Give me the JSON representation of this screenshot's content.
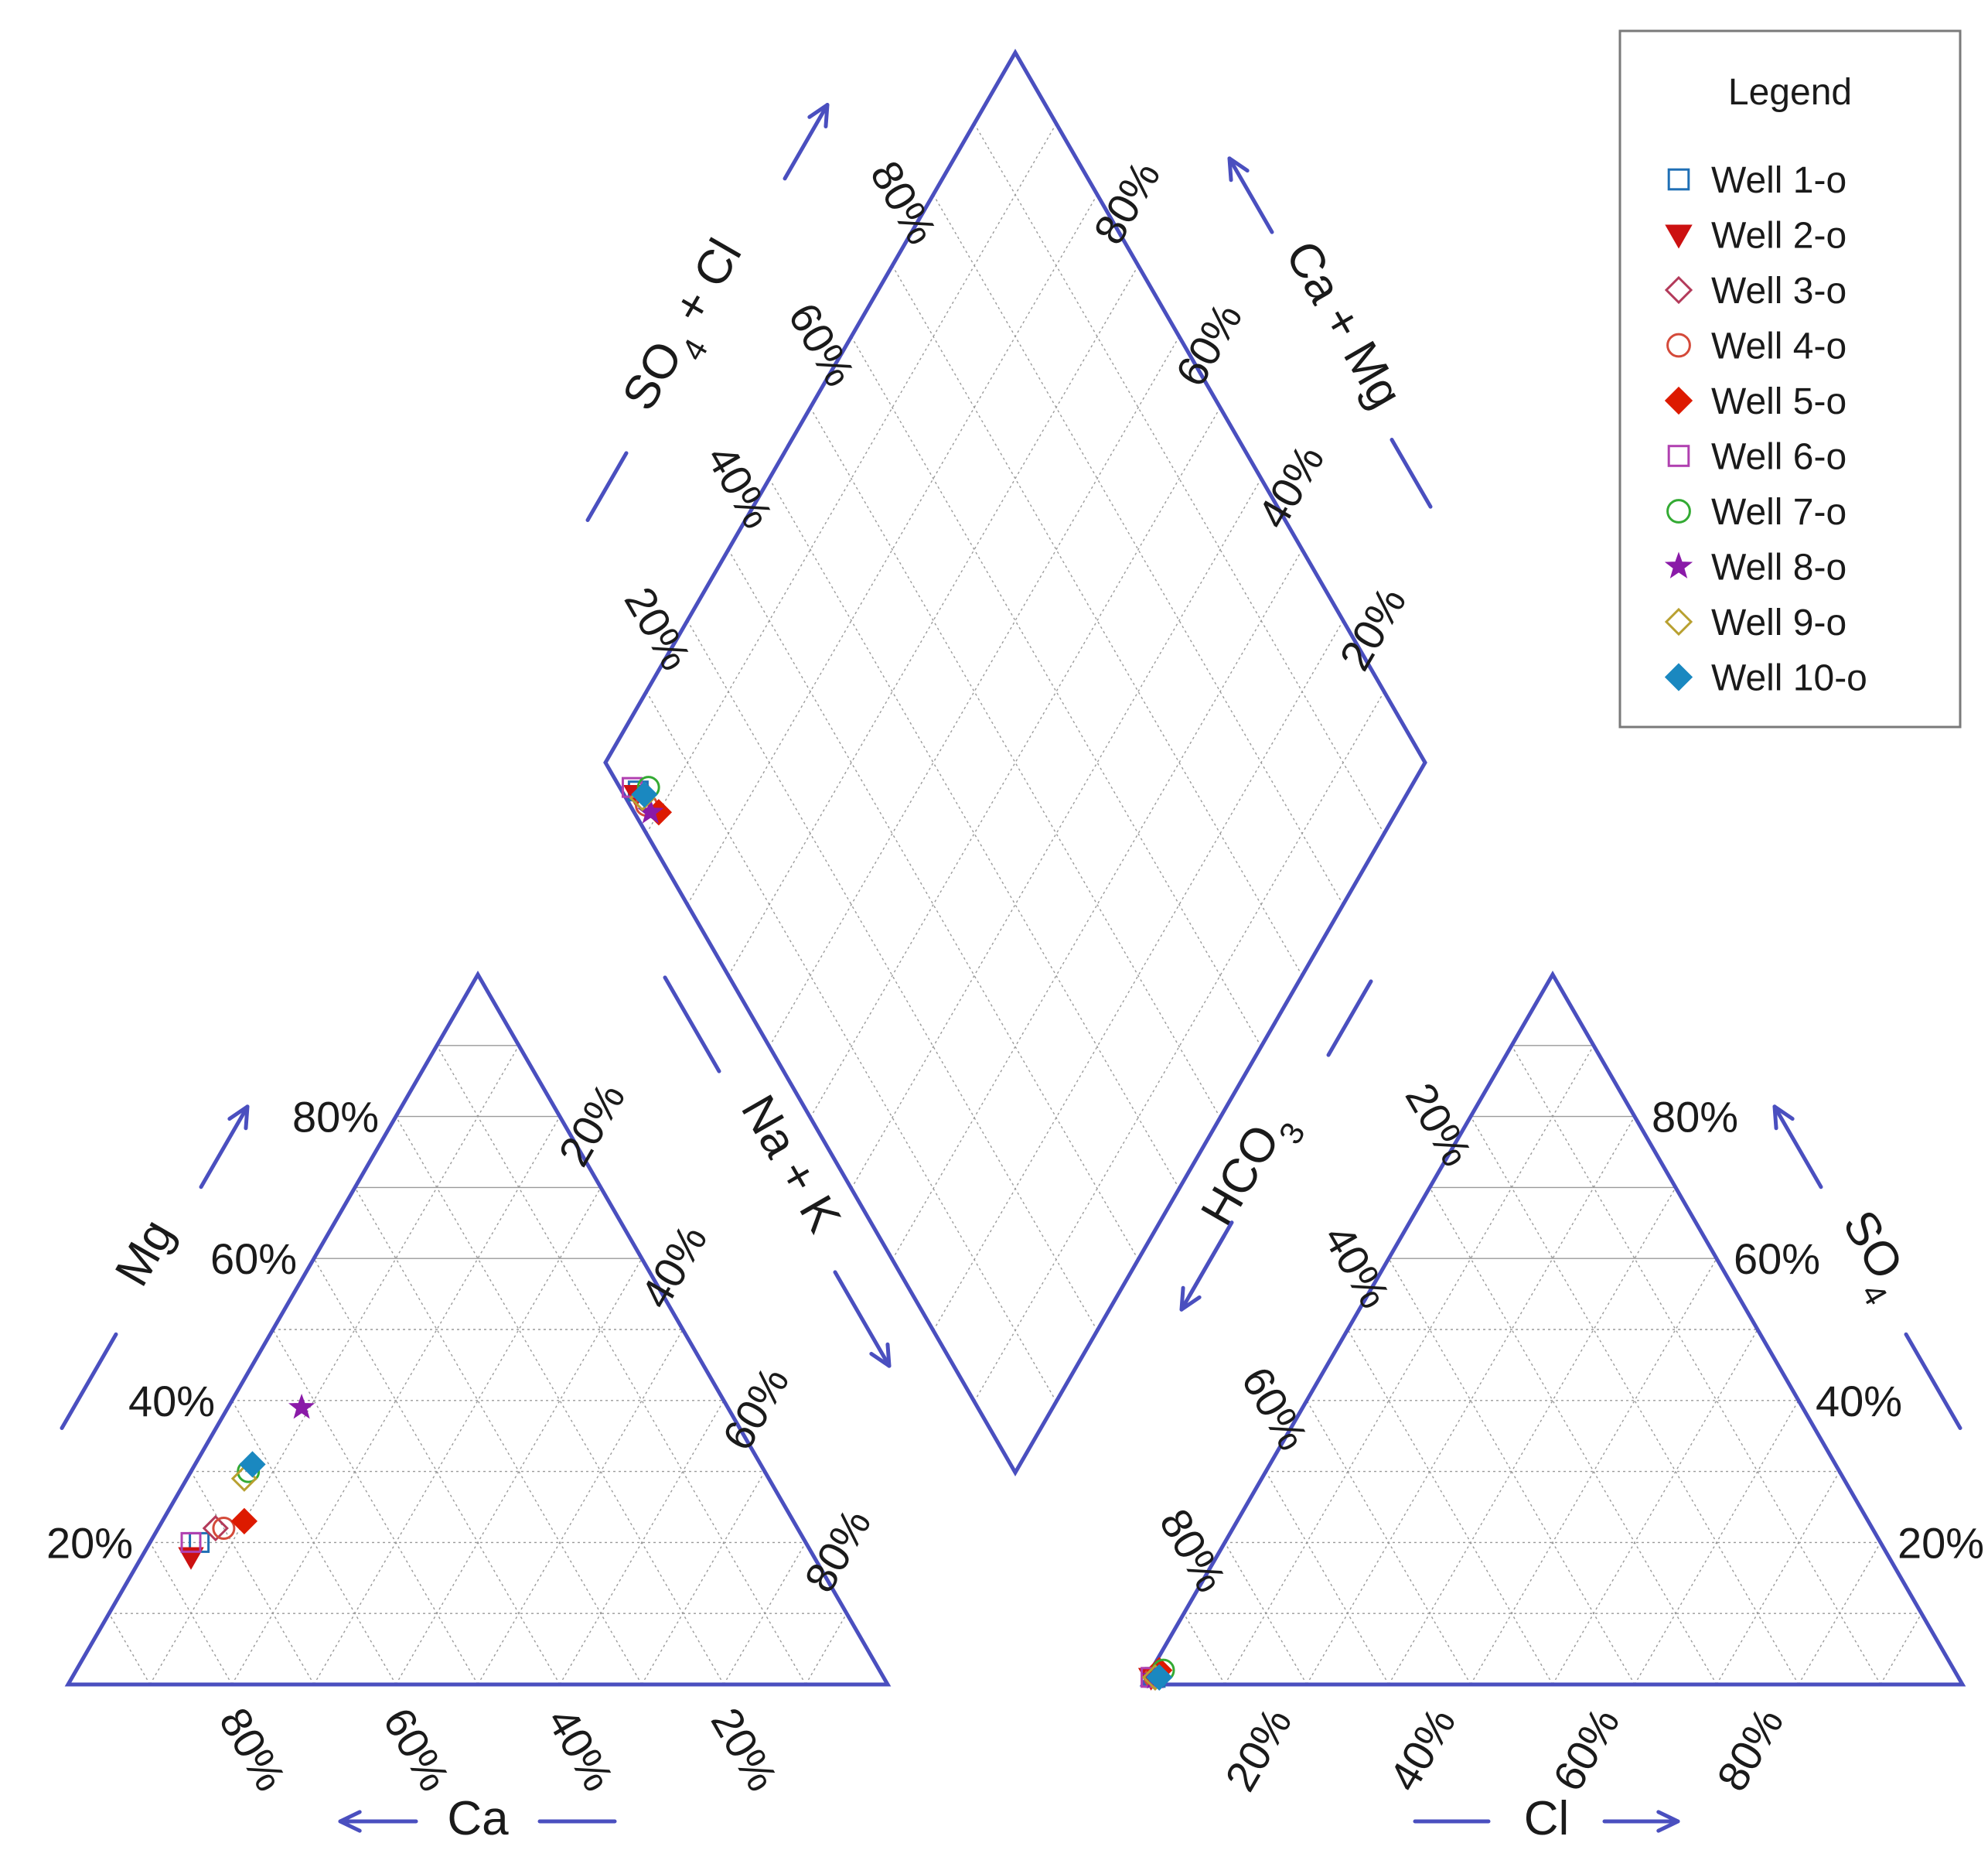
{
  "chart_data": {
    "type": "piper",
    "legend": {
      "title": "Legend",
      "placement": "top-right",
      "items": [
        {
          "label": "Well 1-o",
          "marker": "square-open",
          "color": "#1f6fb5"
        },
        {
          "label": "Well 2-o",
          "marker": "triangle-down-filled",
          "color": "#cc1111"
        },
        {
          "label": "Well 3-o",
          "marker": "diamond-open",
          "color": "#b33a5a"
        },
        {
          "label": "Well 4-o",
          "marker": "circle-open",
          "color": "#d44a3a"
        },
        {
          "label": "Well 5-o",
          "marker": "diamond-filled",
          "color": "#dd1a00"
        },
        {
          "label": "Well 6-o",
          "marker": "square-open",
          "color": "#b040b0"
        },
        {
          "label": "Well 7-o",
          "marker": "circle-open",
          "color": "#33aa33"
        },
        {
          "label": "Well 8-o",
          "marker": "star-filled",
          "color": "#8a1aa8"
        },
        {
          "label": "Well 9-o",
          "marker": "diamond-open",
          "color": "#b8a030"
        },
        {
          "label": "Well 10-o",
          "marker": "diamond-filled",
          "color": "#1a88c0"
        }
      ]
    },
    "tick_labels": [
      "20%",
      "40%",
      "60%",
      "80%"
    ],
    "axes": {
      "cation_mg": "Mg",
      "cation_ca": "Ca",
      "cation_nak": "Na + K",
      "anion_so4_sym": "SO",
      "anion_so4_sub": "4",
      "anion_cl": "Cl",
      "anion_hco3_sym": "HCO",
      "anion_hco3_sub": "3",
      "diamond_so4cl_sym": "SO",
      "diamond_so4cl_sub": "4",
      "diamond_so4cl_rest": " + Cl",
      "diamond_camg": "Ca + Mg"
    },
    "grid": true,
    "samples": [
      {
        "name": "Well 1-o",
        "Mg": 20,
        "Ca": 74,
        "NaK": 6,
        "SO4": 1,
        "Cl": 1,
        "HCO3": 98
      },
      {
        "name": "Well 2-o",
        "Mg": 18,
        "Ca": 76,
        "NaK": 6,
        "SO4": 1,
        "Cl": 0.5,
        "HCO3": 98.5
      },
      {
        "name": "Well 3-o",
        "Mg": 22,
        "Ca": 71,
        "NaK": 7,
        "SO4": 1,
        "Cl": 1,
        "HCO3": 98
      },
      {
        "name": "Well 4-o",
        "Mg": 22,
        "Ca": 70,
        "NaK": 8,
        "SO4": 1,
        "Cl": 1,
        "HCO3": 98
      },
      {
        "name": "Well 5-o",
        "Mg": 23,
        "Ca": 67,
        "NaK": 10,
        "SO4": 2,
        "Cl": 1,
        "HCO3": 97
      },
      {
        "name": "Well 6-o",
        "Mg": 20,
        "Ca": 75,
        "NaK": 5,
        "SO4": 1,
        "Cl": 0.5,
        "HCO3": 98.5
      },
      {
        "name": "Well 7-o",
        "Mg": 30,
        "Ca": 63,
        "NaK": 7,
        "SO4": 2,
        "Cl": 1.5,
        "HCO3": 96.5
      },
      {
        "name": "Well 8-o",
        "Mg": 39,
        "Ca": 52,
        "NaK": 9,
        "SO4": 1,
        "Cl": 1,
        "HCO3": 98
      },
      {
        "name": "Well 9-o",
        "Mg": 29,
        "Ca": 64,
        "NaK": 7,
        "SO4": 1,
        "Cl": 1,
        "HCO3": 98
      },
      {
        "name": "Well 10-o",
        "Mg": 31,
        "Ca": 62,
        "NaK": 7,
        "SO4": 1,
        "Cl": 1.5,
        "HCO3": 97.5
      }
    ]
  }
}
